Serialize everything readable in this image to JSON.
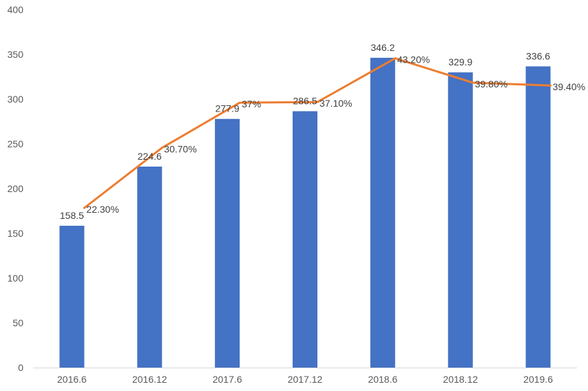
{
  "chart_data": {
    "type": "bar",
    "categories": [
      "2016.6",
      "2016.12",
      "2017.6",
      "2017.12",
      "2018.6",
      "2018.12",
      "2019.6"
    ],
    "series": [
      {
        "type": "bar",
        "values": [
          158.5,
          224.6,
          277.9,
          286.5,
          346.2,
          329.9,
          336.6
        ],
        "labels": [
          "158.5",
          "224.6",
          "277.9",
          "286.5",
          "346.2",
          "329.9",
          "336.6"
        ],
        "color": "#4472C4"
      },
      {
        "type": "line",
        "values": [
          22.3,
          30.7,
          37.0,
          37.1,
          43.2,
          39.8,
          39.4
        ],
        "labels": [
          "22.30%",
          "30.70%",
          "37%",
          "37.10%",
          "43.20%",
          "39.80%",
          "39.40%"
        ],
        "color": "#ED7D31"
      }
    ],
    "ylim": [
      0,
      400
    ],
    "yticks": [
      "0",
      "50",
      "100",
      "150",
      "200",
      "250",
      "300",
      "350",
      "400"
    ],
    "grid": false,
    "legend": "none"
  }
}
